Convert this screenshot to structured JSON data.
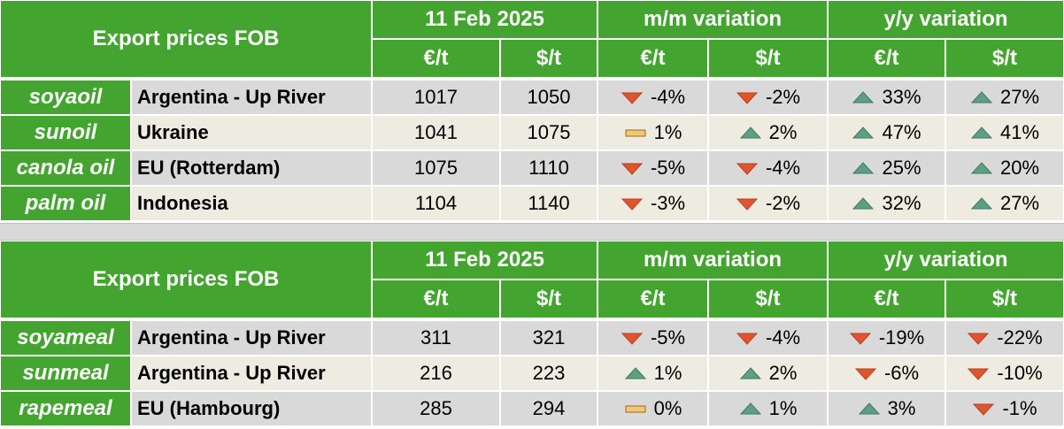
{
  "tables": [
    {
      "header": {
        "title": "Export prices FOB",
        "date": "11 Feb 2025",
        "mm": "m/m variation",
        "yy": "y/y variation",
        "units": [
          "€/t",
          "$/t",
          "€/t",
          "$/t",
          "€/t",
          "$/t"
        ]
      },
      "rows": [
        {
          "product": "soyaoil",
          "origin": "Argentina - Up River",
          "eur": 1017,
          "usd": 1050,
          "changes": [
            {
              "text": "-4%",
              "trend": "down"
            },
            {
              "text": "-2%",
              "trend": "down"
            },
            {
              "text": "33%",
              "trend": "up"
            },
            {
              "text": "27%",
              "trend": "up"
            }
          ]
        },
        {
          "product": "sunoil",
          "origin": "Ukraine",
          "eur": 1041,
          "usd": 1075,
          "changes": [
            {
              "text": "1%",
              "trend": "flat"
            },
            {
              "text": "2%",
              "trend": "up"
            },
            {
              "text": "47%",
              "trend": "up"
            },
            {
              "text": "41%",
              "trend": "up"
            }
          ]
        },
        {
          "product": "canola oil",
          "origin": "EU (Rotterdam)",
          "eur": 1075,
          "usd": 1110,
          "changes": [
            {
              "text": "-5%",
              "trend": "down"
            },
            {
              "text": "-4%",
              "trend": "down"
            },
            {
              "text": "25%",
              "trend": "up"
            },
            {
              "text": "20%",
              "trend": "up"
            }
          ]
        },
        {
          "product": "palm oil",
          "origin": "Indonesia",
          "eur": 1104,
          "usd": 1140,
          "changes": [
            {
              "text": "-3%",
              "trend": "down"
            },
            {
              "text": "-2%",
              "trend": "down"
            },
            {
              "text": "32%",
              "trend": "up"
            },
            {
              "text": "27%",
              "trend": "up"
            }
          ]
        }
      ]
    },
    {
      "header": {
        "title": "Export prices FOB",
        "date": "11 Feb 2025",
        "mm": "m/m variation",
        "yy": "y/y variation",
        "units": [
          "€/t",
          "$/t",
          "€/t",
          "$/t",
          "€/t",
          "$/t"
        ]
      },
      "rows": [
        {
          "product": "soyameal",
          "origin": "Argentina - Up River",
          "eur": 311,
          "usd": 321,
          "changes": [
            {
              "text": "-5%",
              "trend": "down"
            },
            {
              "text": "-4%",
              "trend": "down"
            },
            {
              "text": "-19%",
              "trend": "down"
            },
            {
              "text": "-22%",
              "trend": "down"
            }
          ]
        },
        {
          "product": "sunmeal",
          "origin": "Argentina - Up River",
          "eur": 216,
          "usd": 223,
          "changes": [
            {
              "text": "1%",
              "trend": "up"
            },
            {
              "text": "2%",
              "trend": "up"
            },
            {
              "text": "-6%",
              "trend": "down"
            },
            {
              "text": "-10%",
              "trend": "down"
            }
          ]
        },
        {
          "product": "rapemeal",
          "origin": "EU (Hambourg)",
          "eur": 285,
          "usd": 294,
          "changes": [
            {
              "text": "0%",
              "trend": "flat"
            },
            {
              "text": "1%",
              "trend": "up"
            },
            {
              "text": "3%",
              "trend": "up"
            },
            {
              "text": "-1%",
              "trend": "down"
            }
          ]
        }
      ]
    }
  ]
}
